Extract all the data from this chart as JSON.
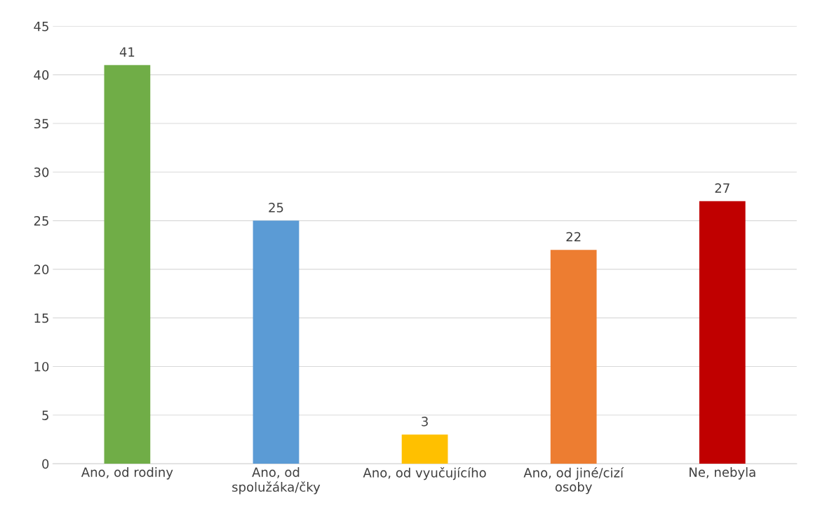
{
  "chart_data": {
    "type": "bar",
    "categories": [
      "Ano, od rodiny",
      "Ano, od\nspolužáka/čky",
      "Ano, od vyučujícího",
      "Ano, od jiné/cizí\nosoby",
      "Ne, nebyla"
    ],
    "values": [
      41,
      25,
      3,
      22,
      27
    ],
    "colors": [
      "#70ad47",
      "#5b9bd5",
      "#ffc000",
      "#ed7d31",
      "#c00000"
    ],
    "ylim": [
      0,
      45
    ],
    "yticks": [
      0,
      5,
      10,
      15,
      20,
      25,
      30,
      35,
      40,
      45
    ],
    "grid": "y",
    "data_labels": true
  }
}
